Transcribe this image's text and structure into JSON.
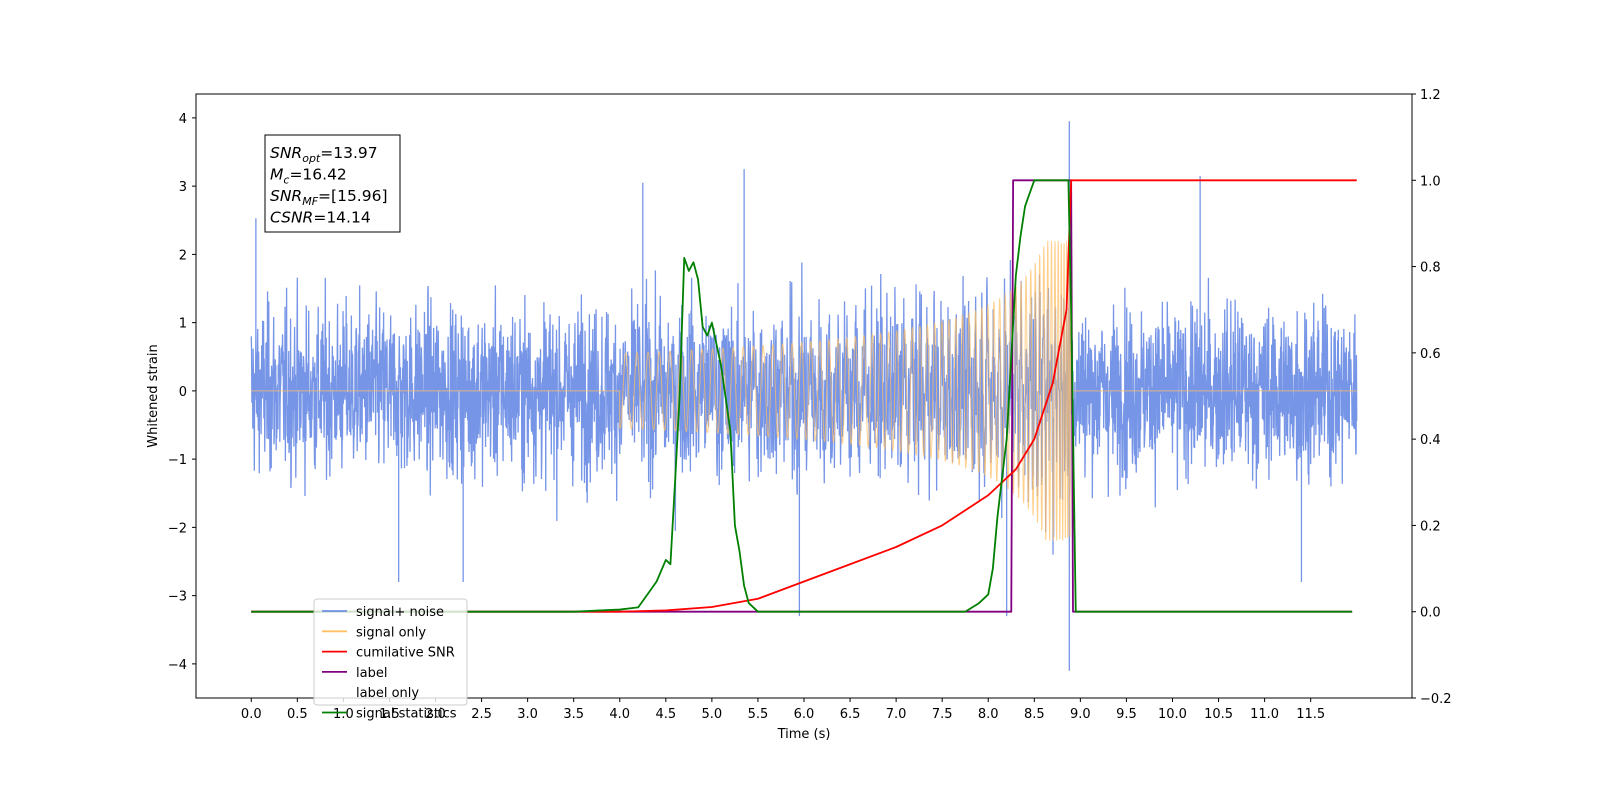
{
  "chart_data": {
    "type": "line",
    "xlabel": "Time (s)",
    "ylabel": "Whitened strain",
    "xlim": [
      -0.6,
      12.6
    ],
    "ylim": [
      -4.5,
      4.35
    ],
    "y2lim": [
      -0.2,
      1.2
    ],
    "x_ticks": [
      0.0,
      0.5,
      1.0,
      1.5,
      2.0,
      2.5,
      3.0,
      3.5,
      4.0,
      4.5,
      5.0,
      5.5,
      6.0,
      6.5,
      7.0,
      7.5,
      8.0,
      8.5,
      9.0,
      9.5,
      10.0,
      10.5,
      11.0,
      11.5
    ],
    "x_tick_labels": [
      "0.0",
      "0.5",
      "1.0",
      "1.5",
      "2.0",
      "2.5",
      "3.0",
      "3.5",
      "4.0",
      "4.5",
      "5.0",
      "5.5",
      "6.0",
      "6.5",
      "7.0",
      "7.5",
      "8.0",
      "8.5",
      "9.0",
      "9.5",
      "10.0",
      "10.5",
      "11.0",
      "11.5"
    ],
    "y_ticks": [
      4,
      3,
      2,
      1,
      0,
      -1,
      -2,
      -3,
      -4
    ],
    "y_tick_labels": [
      "4",
      "3",
      "2",
      "1",
      "0",
      "−1",
      "−2",
      "−3",
      "−4"
    ],
    "y2_ticks": [
      1.2,
      1.0,
      0.8,
      0.6,
      0.4,
      0.2,
      0.0,
      -0.2
    ],
    "y2_tick_labels": [
      "1.2",
      "1.0",
      "0.8",
      "0.6",
      "0.4",
      "0.2",
      "0.0",
      "−0.2"
    ],
    "legend_placement": "lower-left",
    "grid": false,
    "annotation": [
      {
        "base": "SNR",
        "sub": "opt",
        "rest": "=13.97"
      },
      {
        "base": "M",
        "sub": "c",
        "rest": "=16.42"
      },
      {
        "base": "SNR",
        "sub": "MF",
        "rest": "=[15.96]"
      },
      {
        "base": "CSNR",
        "sub": "",
        "rest": "=14.14"
      }
    ],
    "series": [
      {
        "name": "signal+ noise",
        "color": "#6f8fe6",
        "axis": "left",
        "description_points": {
          "x_range": [
            0.0,
            12.0
          ],
          "noise_band": [
            -1.8,
            1.8
          ],
          "spikes": [
            {
              "x": 0.05,
              "y": 2.53
            },
            {
              "x": 1.6,
              "y": -2.8
            },
            {
              "x": 2.3,
              "y": -2.8
            },
            {
              "x": 4.25,
              "y": 3.05
            },
            {
              "x": 5.35,
              "y": 3.25
            },
            {
              "x": 5.95,
              "y": -3.3
            },
            {
              "x": 8.2,
              "y": -3.3
            },
            {
              "x": 8.88,
              "y": 3.95
            },
            {
              "x": 8.88,
              "y": -4.1
            },
            {
              "x": 10.3,
              "y": 3.15
            },
            {
              "x": 11.4,
              "y": -2.8
            }
          ]
        }
      },
      {
        "name": "signal only",
        "color": "#ffbf66",
        "axis": "left",
        "chirp": {
          "start": 4.0,
          "merger": 8.9,
          "peak_amplitude": 2.2
        }
      },
      {
        "name": "cumilative SNR",
        "color": "#ff0000",
        "axis": "right",
        "x": [
          0.0,
          4.0,
          4.5,
          5.0,
          5.5,
          6.0,
          6.5,
          7.0,
          7.5,
          8.0,
          8.3,
          8.5,
          8.7,
          8.85,
          8.9,
          12.0
        ],
        "y": [
          0.0,
          0.0,
          0.003,
          0.011,
          0.03,
          0.07,
          0.11,
          0.15,
          0.2,
          0.27,
          0.33,
          0.4,
          0.53,
          0.7,
          1.0,
          1.0
        ]
      },
      {
        "name": "label",
        "color": "#800080",
        "axis": "right",
        "x": [
          0.0,
          8.25,
          8.27,
          8.9,
          8.92,
          11.95
        ],
        "y": [
          0.0,
          0.0,
          1.0,
          1.0,
          0.0,
          0.0
        ]
      },
      {
        "name": "label only",
        "color": "#cccccc",
        "axis": "right",
        "hidden": true
      },
      {
        "name": "signal statistics",
        "color": "#008000",
        "axis": "right",
        "x": [
          0.0,
          3.5,
          4.0,
          4.2,
          4.3,
          4.4,
          4.5,
          4.55,
          4.6,
          4.65,
          4.7,
          4.75,
          4.8,
          4.85,
          4.9,
          4.95,
          5.0,
          5.1,
          5.2,
          5.25,
          5.3,
          5.35,
          5.4,
          5.5,
          7.5,
          7.75,
          7.9,
          8.0,
          8.05,
          8.1,
          8.2,
          8.3,
          8.35,
          8.4,
          8.45,
          8.5,
          8.6,
          8.8,
          8.87,
          8.9,
          8.95,
          11.95
        ],
        "y": [
          0.0,
          0.0,
          0.005,
          0.01,
          0.04,
          0.07,
          0.12,
          0.11,
          0.3,
          0.5,
          0.82,
          0.79,
          0.81,
          0.77,
          0.66,
          0.64,
          0.67,
          0.57,
          0.42,
          0.2,
          0.14,
          0.06,
          0.02,
          0.0,
          0.0,
          0.0,
          0.02,
          0.04,
          0.1,
          0.22,
          0.4,
          0.78,
          0.87,
          0.94,
          0.97,
          1.0,
          1.0,
          1.0,
          1.0,
          0.7,
          0.0,
          0.0
        ]
      }
    ]
  }
}
